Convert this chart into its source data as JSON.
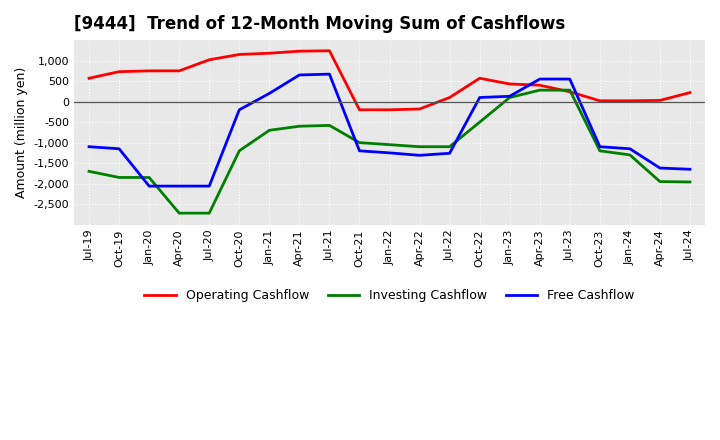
{
  "title": "[9444]  Trend of 12-Month Moving Sum of Cashflows",
  "ylabel": "Amount (million yen)",
  "x_labels": [
    "Jul-19",
    "Oct-19",
    "Jan-20",
    "Apr-20",
    "Jul-20",
    "Oct-20",
    "Jan-21",
    "Apr-21",
    "Jul-21",
    "Oct-21",
    "Jan-22",
    "Apr-22",
    "Jul-22",
    "Oct-22",
    "Jan-23",
    "Apr-23",
    "Jul-23",
    "Oct-23",
    "Jan-24",
    "Apr-24",
    "Jul-24"
  ],
  "operating": [
    570,
    730,
    750,
    750,
    1020,
    1150,
    1180,
    1230,
    1240,
    -200,
    -200,
    -180,
    100,
    570,
    430,
    400,
    240,
    20,
    20,
    30,
    220
  ],
  "investing": [
    -1700,
    -1850,
    -1850,
    -2720,
    -2720,
    -1200,
    -700,
    -600,
    -580,
    -1000,
    -1050,
    -1100,
    -1100,
    -500,
    100,
    280,
    280,
    -1200,
    -1300,
    -1950,
    -1960
  ],
  "free": [
    -1100,
    -1150,
    -2060,
    -2060,
    -2060,
    -200,
    200,
    650,
    670,
    -1200,
    -1250,
    -1310,
    -1260,
    100,
    130,
    550,
    550,
    -1100,
    -1150,
    -1620,
    -1650
  ],
  "operating_color": "#ff0000",
  "investing_color": "#008000",
  "free_color": "#0000ff",
  "ylim": [
    -3000,
    1500
  ],
  "yticks": [
    -2500,
    -2000,
    -1500,
    -1000,
    -500,
    0,
    500,
    1000
  ],
  "background_color": "#ffffff",
  "plot_bg_color": "#e8e8e8",
  "grid_color": "#ffffff",
  "title_fontsize": 12,
  "label_fontsize": 8,
  "ylabel_fontsize": 9
}
